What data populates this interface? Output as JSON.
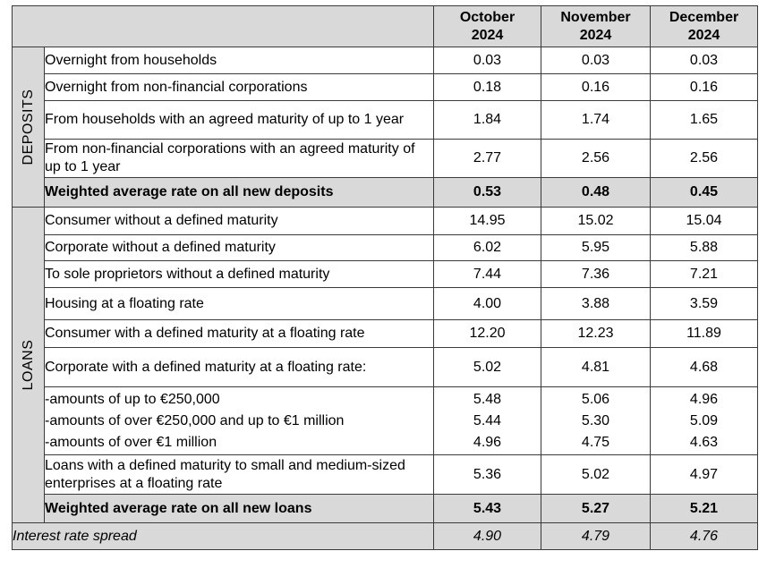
{
  "headers": {
    "months": [
      {
        "line1": "October",
        "line2": "2024"
      },
      {
        "line1": "November",
        "line2": "2024"
      },
      {
        "line1": "December",
        "line2": "2024"
      }
    ]
  },
  "deposits": {
    "group_label": "DEPOSITS",
    "rows": [
      {
        "label": "Overnight from households",
        "values": [
          "0.03",
          "0.03",
          "0.03"
        ]
      },
      {
        "label": "Overnight from non-financial corporations",
        "values": [
          "0.18",
          "0.16",
          "0.16"
        ]
      },
      {
        "label": "From households with an agreed maturity of up to 1 year",
        "values": [
          "1.84",
          "1.74",
          "1.65"
        ]
      },
      {
        "label": "From non-financial corporations with an agreed maturity of up to 1 year",
        "values": [
          "2.77",
          "2.56",
          "2.56"
        ]
      }
    ],
    "total": {
      "label": "Weighted average rate on all new deposits",
      "values": [
        "0.53",
        "0.48",
        "0.45"
      ]
    }
  },
  "loans": {
    "group_label": "LOANS",
    "rows": [
      {
        "label": "Consumer without a defined maturity",
        "values": [
          "14.95",
          "15.02",
          "15.04"
        ]
      },
      {
        "label": "Corporate without a defined maturity",
        "values": [
          "6.02",
          "5.95",
          "5.88"
        ]
      },
      {
        "label": "To sole proprietors without a defined maturity",
        "values": [
          "7.44",
          "7.36",
          "7.21"
        ]
      },
      {
        "label": "Housing at a floating rate",
        "values": [
          "4.00",
          "3.88",
          "3.59"
        ]
      },
      {
        "label": "Consumer with a defined maturity at a floating rate",
        "values": [
          "12.20",
          "12.23",
          "11.89"
        ]
      }
    ],
    "corporate_floating": {
      "label": "Corporate with a defined maturity at a floating rate:",
      "values": [
        "5.02",
        "4.81",
        "4.68"
      ],
      "subrows": [
        {
          "label": "-amounts of up to €250,000",
          "values": [
            "5.48",
            "5.06",
            "4.96"
          ]
        },
        {
          "label": "-amounts of over €250,000 and up to €1 million",
          "values": [
            "5.44",
            "5.30",
            "5.09"
          ]
        },
        {
          "label": "-amounts of over €1 million",
          "values": [
            "4.96",
            "4.75",
            "4.63"
          ]
        }
      ]
    },
    "sme": {
      "label": "Loans with a defined maturity to small and medium-sized enterprises at a floating rate",
      "values": [
        "5.36",
        "5.02",
        "4.97"
      ]
    },
    "total": {
      "label": "Weighted average rate on all new loans",
      "values": [
        "5.43",
        "5.27",
        "5.21"
      ]
    }
  },
  "spread": {
    "label": "Interest rate spread",
    "values": [
      "4.90",
      "4.79",
      "4.76"
    ]
  }
}
